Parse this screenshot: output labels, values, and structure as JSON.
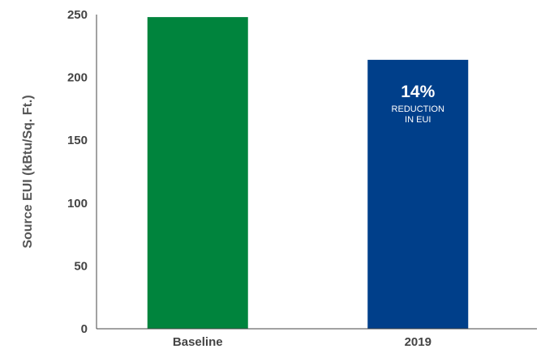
{
  "chart_data": {
    "type": "bar",
    "categories": [
      "Baseline",
      "2019"
    ],
    "values": [
      248,
      214
    ],
    "ylabel": "Source EUI (kBtu/Sq. Ft.)",
    "xlabel": "",
    "ylim": [
      0,
      250
    ],
    "yticks": [
      0,
      50,
      100,
      150,
      200,
      250
    ],
    "bar_colors": [
      "#00843d",
      "#003f8a"
    ],
    "grid": false,
    "annotation": {
      "bar_index": 1,
      "percent": "14%",
      "line1": "REDUCTION",
      "line2": "IN EUI"
    }
  }
}
